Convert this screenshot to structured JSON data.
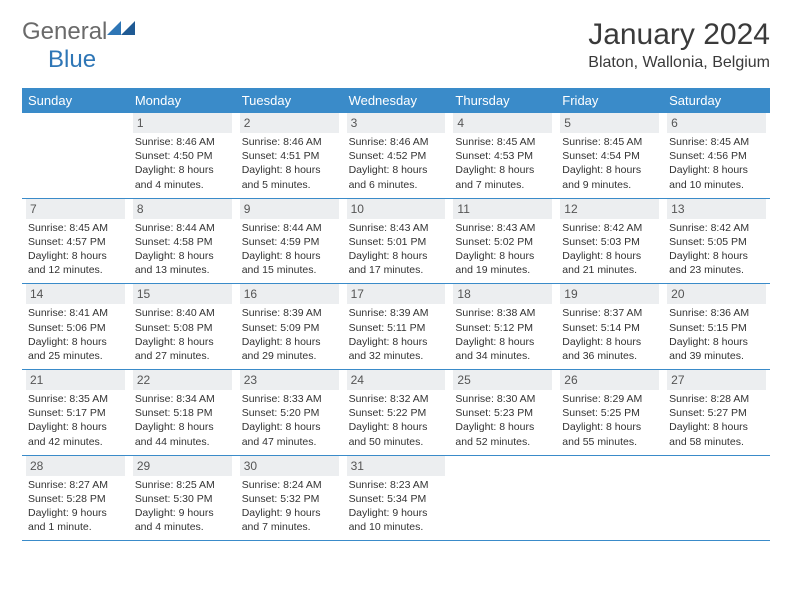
{
  "logo": {
    "part1": "General",
    "part2": "Blue"
  },
  "title": "January 2024",
  "subtitle": "Blaton, Wallonia, Belgium",
  "colors": {
    "header_bg": "#3a8bc9",
    "header_text": "#ffffff",
    "daynum_bg": "#eceef0",
    "rule": "#3a8bc9",
    "logo_gray": "#6a6a6a",
    "logo_blue": "#2e76b6"
  },
  "weekdays": [
    "Sunday",
    "Monday",
    "Tuesday",
    "Wednesday",
    "Thursday",
    "Friday",
    "Saturday"
  ],
  "weeks": [
    [
      {
        "n": "",
        "sunrise": "",
        "sunset": "",
        "daylight": ""
      },
      {
        "n": "1",
        "sunrise": "Sunrise: 8:46 AM",
        "sunset": "Sunset: 4:50 PM",
        "daylight": "Daylight: 8 hours and 4 minutes."
      },
      {
        "n": "2",
        "sunrise": "Sunrise: 8:46 AM",
        "sunset": "Sunset: 4:51 PM",
        "daylight": "Daylight: 8 hours and 5 minutes."
      },
      {
        "n": "3",
        "sunrise": "Sunrise: 8:46 AM",
        "sunset": "Sunset: 4:52 PM",
        "daylight": "Daylight: 8 hours and 6 minutes."
      },
      {
        "n": "4",
        "sunrise": "Sunrise: 8:45 AM",
        "sunset": "Sunset: 4:53 PM",
        "daylight": "Daylight: 8 hours and 7 minutes."
      },
      {
        "n": "5",
        "sunrise": "Sunrise: 8:45 AM",
        "sunset": "Sunset: 4:54 PM",
        "daylight": "Daylight: 8 hours and 9 minutes."
      },
      {
        "n": "6",
        "sunrise": "Sunrise: 8:45 AM",
        "sunset": "Sunset: 4:56 PM",
        "daylight": "Daylight: 8 hours and 10 minutes."
      }
    ],
    [
      {
        "n": "7",
        "sunrise": "Sunrise: 8:45 AM",
        "sunset": "Sunset: 4:57 PM",
        "daylight": "Daylight: 8 hours and 12 minutes."
      },
      {
        "n": "8",
        "sunrise": "Sunrise: 8:44 AM",
        "sunset": "Sunset: 4:58 PM",
        "daylight": "Daylight: 8 hours and 13 minutes."
      },
      {
        "n": "9",
        "sunrise": "Sunrise: 8:44 AM",
        "sunset": "Sunset: 4:59 PM",
        "daylight": "Daylight: 8 hours and 15 minutes."
      },
      {
        "n": "10",
        "sunrise": "Sunrise: 8:43 AM",
        "sunset": "Sunset: 5:01 PM",
        "daylight": "Daylight: 8 hours and 17 minutes."
      },
      {
        "n": "11",
        "sunrise": "Sunrise: 8:43 AM",
        "sunset": "Sunset: 5:02 PM",
        "daylight": "Daylight: 8 hours and 19 minutes."
      },
      {
        "n": "12",
        "sunrise": "Sunrise: 8:42 AM",
        "sunset": "Sunset: 5:03 PM",
        "daylight": "Daylight: 8 hours and 21 minutes."
      },
      {
        "n": "13",
        "sunrise": "Sunrise: 8:42 AM",
        "sunset": "Sunset: 5:05 PM",
        "daylight": "Daylight: 8 hours and 23 minutes."
      }
    ],
    [
      {
        "n": "14",
        "sunrise": "Sunrise: 8:41 AM",
        "sunset": "Sunset: 5:06 PM",
        "daylight": "Daylight: 8 hours and 25 minutes."
      },
      {
        "n": "15",
        "sunrise": "Sunrise: 8:40 AM",
        "sunset": "Sunset: 5:08 PM",
        "daylight": "Daylight: 8 hours and 27 minutes."
      },
      {
        "n": "16",
        "sunrise": "Sunrise: 8:39 AM",
        "sunset": "Sunset: 5:09 PM",
        "daylight": "Daylight: 8 hours and 29 minutes."
      },
      {
        "n": "17",
        "sunrise": "Sunrise: 8:39 AM",
        "sunset": "Sunset: 5:11 PM",
        "daylight": "Daylight: 8 hours and 32 minutes."
      },
      {
        "n": "18",
        "sunrise": "Sunrise: 8:38 AM",
        "sunset": "Sunset: 5:12 PM",
        "daylight": "Daylight: 8 hours and 34 minutes."
      },
      {
        "n": "19",
        "sunrise": "Sunrise: 8:37 AM",
        "sunset": "Sunset: 5:14 PM",
        "daylight": "Daylight: 8 hours and 36 minutes."
      },
      {
        "n": "20",
        "sunrise": "Sunrise: 8:36 AM",
        "sunset": "Sunset: 5:15 PM",
        "daylight": "Daylight: 8 hours and 39 minutes."
      }
    ],
    [
      {
        "n": "21",
        "sunrise": "Sunrise: 8:35 AM",
        "sunset": "Sunset: 5:17 PM",
        "daylight": "Daylight: 8 hours and 42 minutes."
      },
      {
        "n": "22",
        "sunrise": "Sunrise: 8:34 AM",
        "sunset": "Sunset: 5:18 PM",
        "daylight": "Daylight: 8 hours and 44 minutes."
      },
      {
        "n": "23",
        "sunrise": "Sunrise: 8:33 AM",
        "sunset": "Sunset: 5:20 PM",
        "daylight": "Daylight: 8 hours and 47 minutes."
      },
      {
        "n": "24",
        "sunrise": "Sunrise: 8:32 AM",
        "sunset": "Sunset: 5:22 PM",
        "daylight": "Daylight: 8 hours and 50 minutes."
      },
      {
        "n": "25",
        "sunrise": "Sunrise: 8:30 AM",
        "sunset": "Sunset: 5:23 PM",
        "daylight": "Daylight: 8 hours and 52 minutes."
      },
      {
        "n": "26",
        "sunrise": "Sunrise: 8:29 AM",
        "sunset": "Sunset: 5:25 PM",
        "daylight": "Daylight: 8 hours and 55 minutes."
      },
      {
        "n": "27",
        "sunrise": "Sunrise: 8:28 AM",
        "sunset": "Sunset: 5:27 PM",
        "daylight": "Daylight: 8 hours and 58 minutes."
      }
    ],
    [
      {
        "n": "28",
        "sunrise": "Sunrise: 8:27 AM",
        "sunset": "Sunset: 5:28 PM",
        "daylight": "Daylight: 9 hours and 1 minute."
      },
      {
        "n": "29",
        "sunrise": "Sunrise: 8:25 AM",
        "sunset": "Sunset: 5:30 PM",
        "daylight": "Daylight: 9 hours and 4 minutes."
      },
      {
        "n": "30",
        "sunrise": "Sunrise: 8:24 AM",
        "sunset": "Sunset: 5:32 PM",
        "daylight": "Daylight: 9 hours and 7 minutes."
      },
      {
        "n": "31",
        "sunrise": "Sunrise: 8:23 AM",
        "sunset": "Sunset: 5:34 PM",
        "daylight": "Daylight: 9 hours and 10 minutes."
      },
      {
        "n": "",
        "sunrise": "",
        "sunset": "",
        "daylight": ""
      },
      {
        "n": "",
        "sunrise": "",
        "sunset": "",
        "daylight": ""
      },
      {
        "n": "",
        "sunrise": "",
        "sunset": "",
        "daylight": ""
      }
    ]
  ]
}
